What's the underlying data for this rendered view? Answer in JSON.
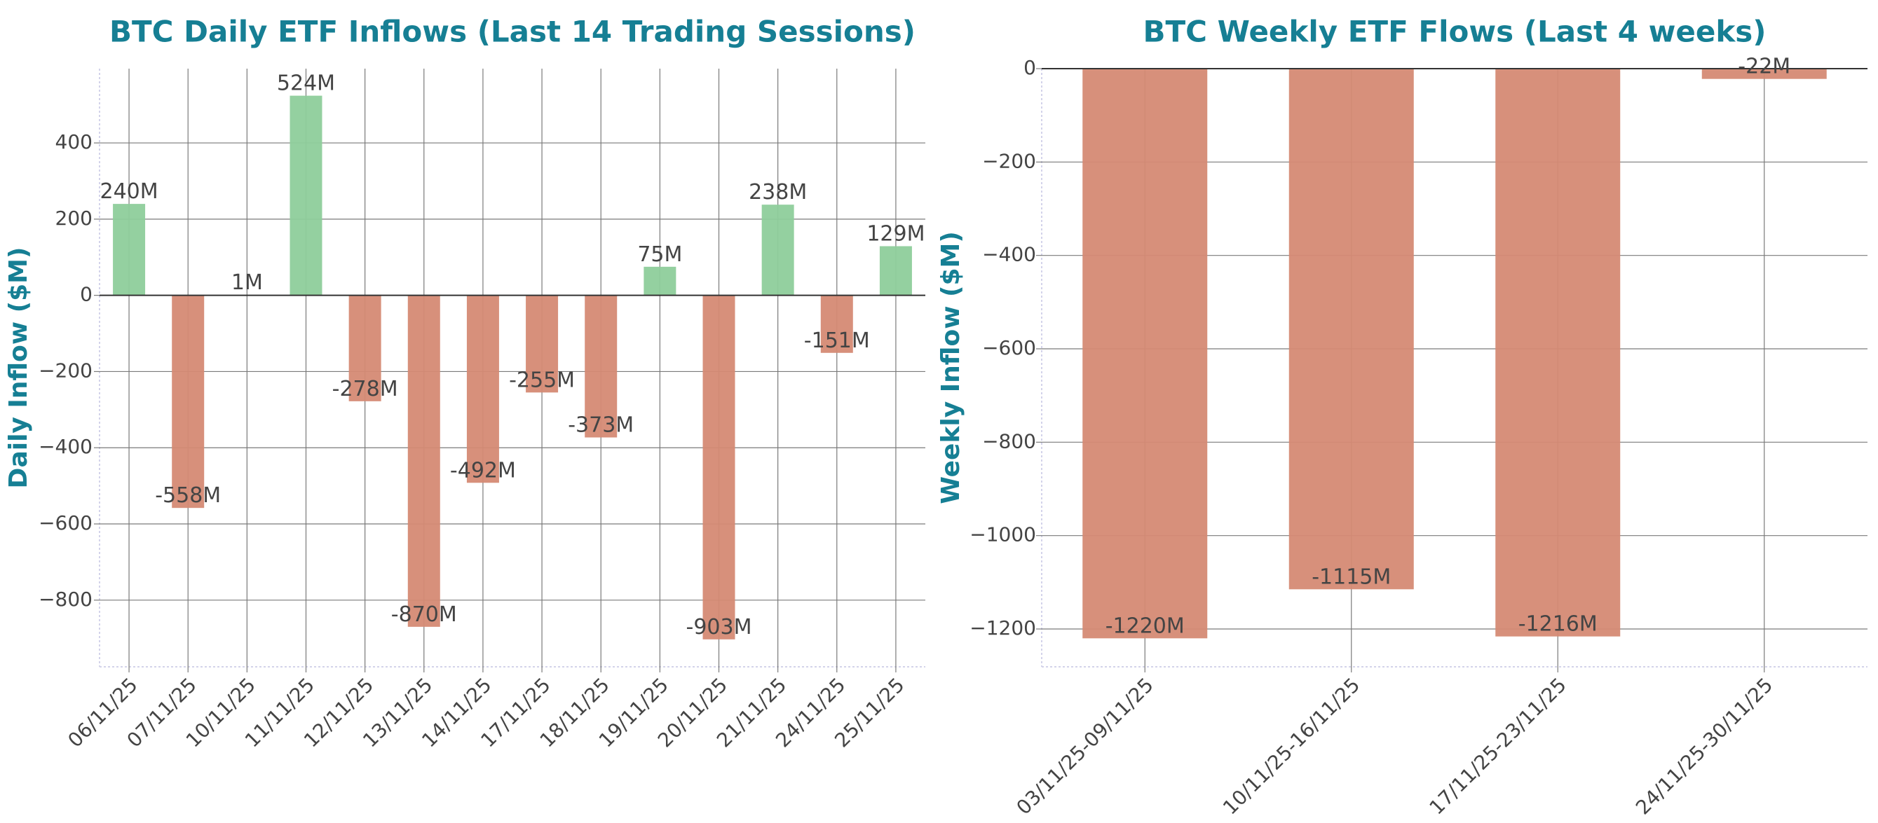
{
  "colors": {
    "title": "#167f94",
    "positive": "#8ecd9b",
    "negative": "#d58a74",
    "grid": "#7a7a7a",
    "spine": "#d3d3ea",
    "tick_text": "#444444"
  },
  "chart_data": [
    {
      "type": "bar",
      "title": "BTC Daily ETF Inflows (Last 14 Trading Sessions)",
      "xlabel": "",
      "ylabel": "Daily Inflow ($M)",
      "categories": [
        "06/11/25",
        "07/11/25",
        "10/11/25",
        "11/11/25",
        "12/11/25",
        "13/11/25",
        "14/11/25",
        "17/11/25",
        "18/11/25",
        "19/11/25",
        "20/11/25",
        "21/11/25",
        "24/11/25",
        "25/11/25"
      ],
      "values": [
        240,
        -558,
        1,
        524,
        -278,
        -870,
        -492,
        -255,
        -373,
        75,
        -903,
        238,
        -151,
        129
      ],
      "data_labels": [
        "240M",
        "-558M",
        "1M",
        "524M",
        "-278M",
        "-870M",
        "-492M",
        "-255M",
        "-373M",
        "75M",
        "-903M",
        "238M",
        "-151M",
        "129M"
      ],
      "ylim": [
        -975,
        595
      ],
      "yticks": [
        400,
        200,
        0,
        -200,
        -400,
        -600,
        -800
      ],
      "ytick_labels": [
        "400",
        "200",
        "0",
        "−200",
        "−400",
        "−600",
        "−800"
      ],
      "grid": true,
      "zero_line": true
    },
    {
      "type": "bar",
      "title": "BTC Weekly ETF Flows (Last 4 weeks)",
      "xlabel": "",
      "ylabel": "Weekly Inflow ($M)",
      "categories": [
        "03/11/25-09/11/25",
        "10/11/25-16/11/25",
        "17/11/25-23/11/25",
        "24/11/25-30/11/25"
      ],
      "values": [
        -1220,
        -1115,
        -1216,
        -22
      ],
      "data_labels": [
        "-1220M",
        "-1115M",
        "-1216M",
        "-22M"
      ],
      "ylim": [
        -1281,
        0
      ],
      "yticks": [
        0,
        -200,
        -400,
        -600,
        -800,
        -1000,
        -1200
      ],
      "ytick_labels": [
        "0",
        "−200",
        "−400",
        "−600",
        "−800",
        "−1000",
        "−1200"
      ],
      "grid": true,
      "zero_line": true
    }
  ]
}
